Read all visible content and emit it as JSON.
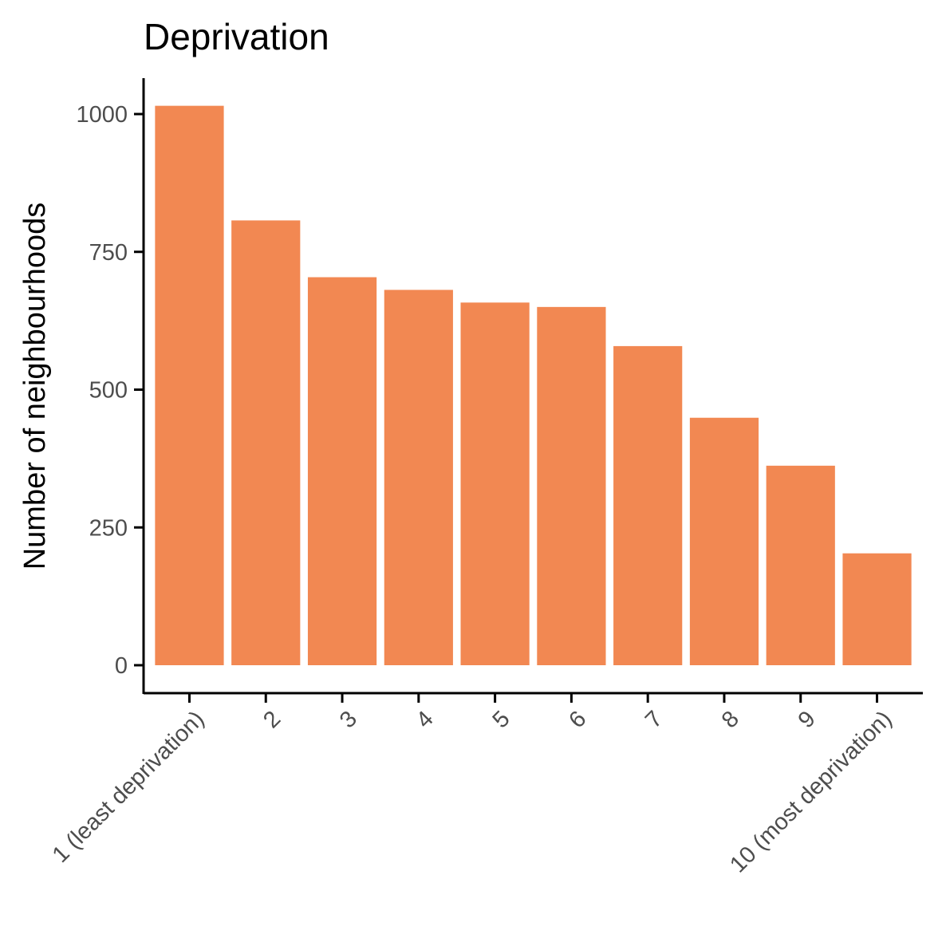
{
  "chart_data": {
    "type": "bar",
    "title": "Deprivation",
    "xlabel": "",
    "ylabel": "Number of neighbourhoods",
    "categories": [
      "1 (least deprivation)",
      "2",
      "3",
      "4",
      "5",
      "6",
      "7",
      "8",
      "9",
      "10 (most deprivation)"
    ],
    "values": [
      1015,
      807,
      704,
      681,
      658,
      650,
      579,
      449,
      362,
      203
    ],
    "ylim": [
      0,
      1000
    ],
    "yticks": [
      0,
      250,
      500,
      750,
      1000
    ],
    "bar_color": "#F28852",
    "grid": false,
    "legend": "none"
  }
}
